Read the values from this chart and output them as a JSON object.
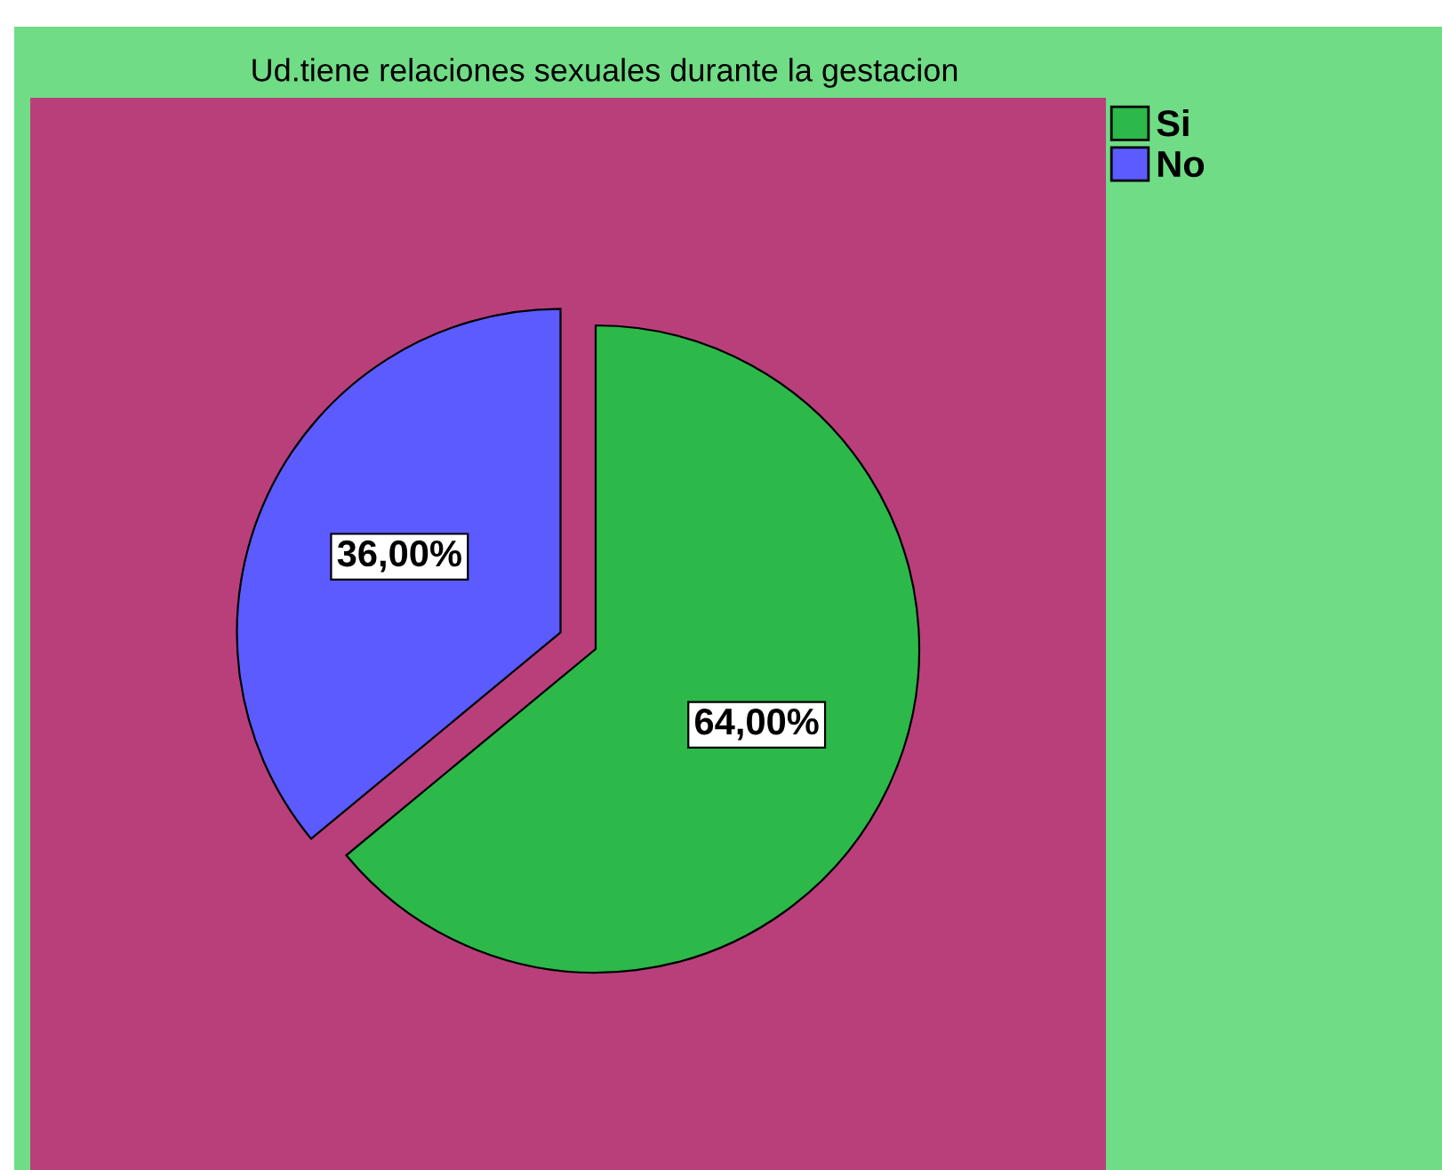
{
  "chart_data": {
    "type": "pie",
    "title": "Ud.tiene relaciones sexuales durante la gestacion",
    "categories": [
      "Si",
      "No"
    ],
    "values": [
      64,
      36
    ],
    "colors": [
      "#2db84a",
      "#5b5bff"
    ],
    "value_labels": [
      "64,00%",
      "36,00%"
    ],
    "legend": "top right"
  }
}
